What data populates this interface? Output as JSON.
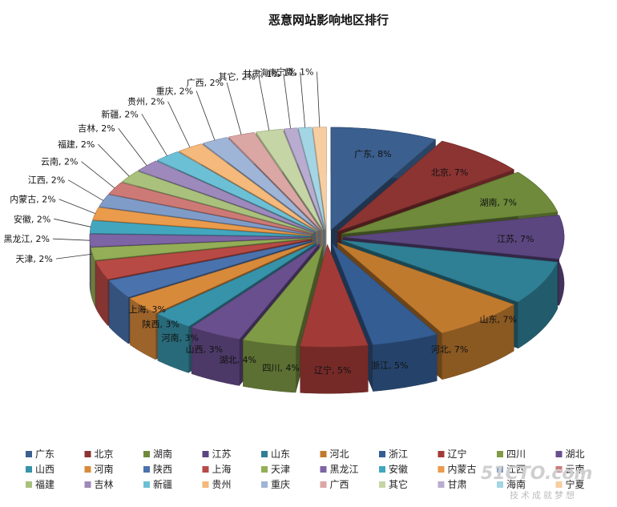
{
  "chart_data": {
    "type": "pie",
    "title": "恶意网站影响地区排行",
    "slices": [
      {
        "label": "广东",
        "value": 8,
        "text": "广东, 8%",
        "color": "#3b5f8e"
      },
      {
        "label": "北京",
        "value": 7,
        "text": "北京, 7%",
        "color": "#8b3432"
      },
      {
        "label": "湖南",
        "value": 7,
        "text": "湖南, 7%",
        "color": "#6e8a3a"
      },
      {
        "label": "江苏",
        "value": 7,
        "text": "江苏, 7%",
        "color": "#5b4680"
      },
      {
        "label": "山东",
        "value": 7,
        "text": "山东, 7%",
        "color": "#2f7f95"
      },
      {
        "label": "河北",
        "value": 7,
        "text": "河北, 7%",
        "color": "#c07a2e"
      },
      {
        "label": "浙江",
        "value": 5,
        "text": "浙江, 5%",
        "color": "#345d93"
      },
      {
        "label": "辽宁",
        "value": 5,
        "text": "辽宁, 5%",
        "color": "#a23b37"
      },
      {
        "label": "四川",
        "value": 4,
        "text": "四川, 4%",
        "color": "#7f9b45"
      },
      {
        "label": "湖北",
        "value": 4,
        "text": "湖北, 4%",
        "color": "#6a4f8f"
      },
      {
        "label": "山西",
        "value": 3,
        "text": "山西, 3%",
        "color": "#3793aa"
      },
      {
        "label": "河南",
        "value": 3,
        "text": "河南, 3%",
        "color": "#d88a3b"
      },
      {
        "label": "陕西",
        "value": 3,
        "text": "陕西, 3%",
        "color": "#4a72ad"
      },
      {
        "label": "上海",
        "value": 3,
        "text": "上海, 3%",
        "color": "#b84a45"
      },
      {
        "label": "天津",
        "value": 2,
        "text": "天津, 2%",
        "color": "#93ae56"
      },
      {
        "label": "黑龙江",
        "value": 2,
        "text": "黑龙江, 2%",
        "color": "#7d64a4"
      },
      {
        "label": "安徽",
        "value": 2,
        "text": "安徽, 2%",
        "color": "#43a6bf"
      },
      {
        "label": "内蒙古",
        "value": 2,
        "text": "内蒙古, 2%",
        "color": "#ea9b4b"
      },
      {
        "label": "江西",
        "value": 2,
        "text": "江西, 2%",
        "color": "#7f9cc9"
      },
      {
        "label": "云南",
        "value": 2,
        "text": "云南, 2%",
        "color": "#cd7a77"
      },
      {
        "label": "福建",
        "value": 2,
        "text": "福建, 2%",
        "color": "#a9c17c"
      },
      {
        "label": "吉林",
        "value": 2,
        "text": "吉林, 2%",
        "color": "#9d89bb"
      },
      {
        "label": "新疆",
        "value": 2,
        "text": "新疆, 2%",
        "color": "#6cc0d6"
      },
      {
        "label": "贵州",
        "value": 2,
        "text": "贵州, 2%",
        "color": "#f4b97b"
      },
      {
        "label": "重庆",
        "value": 2,
        "text": "重庆, 2%",
        "color": "#9fb5d8"
      },
      {
        "label": "广西",
        "value": 2,
        "text": "广西, 2%",
        "color": "#dba7a5"
      },
      {
        "label": "其它",
        "value": 2,
        "text": "其它, 2%",
        "color": "#c5d5a5"
      },
      {
        "label": "甘肃",
        "value": 1,
        "text": "甘肃, 1%",
        "color": "#b9acd0"
      },
      {
        "label": "海南",
        "value": 1,
        "text": "海南, 1%",
        "color": "#a3d5e4"
      },
      {
        "label": "宁夏",
        "value": 1,
        "text": "宁夏, 1%",
        "color": "#f7cda2"
      }
    ],
    "legend": "bottom"
  },
  "watermark": {
    "logo": "51CTO.com",
    "slogan": "技术成就梦想"
  }
}
